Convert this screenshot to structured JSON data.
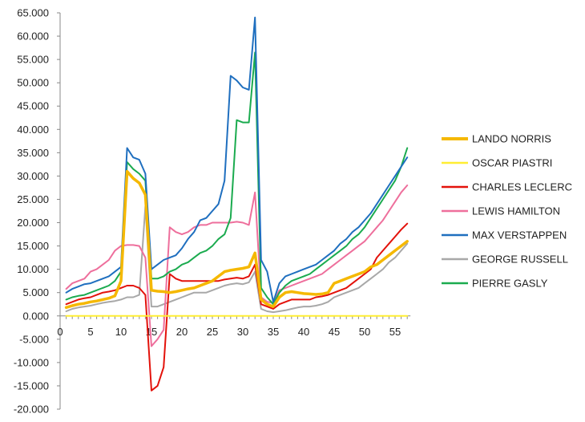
{
  "chart_data": {
    "type": "line",
    "x": [
      1,
      2,
      3,
      4,
      5,
      6,
      7,
      8,
      9,
      10,
      11,
      12,
      13,
      14,
      15,
      16,
      17,
      18,
      19,
      20,
      21,
      22,
      23,
      24,
      25,
      26,
      27,
      28,
      29,
      30,
      31,
      32,
      33,
      34,
      35,
      36,
      37,
      38,
      39,
      40,
      41,
      42,
      43,
      44,
      45,
      46,
      47,
      48,
      49,
      50,
      51,
      52,
      53,
      54,
      55,
      56,
      57
    ],
    "ylim": [
      -20,
      65
    ],
    "yticks": [
      "-20.000",
      "-15.000",
      "-10.000",
      "-5.000",
      "0.000",
      "5.000",
      "10.000",
      "15.000",
      "20.000",
      "25.000",
      "30.000",
      "35.000",
      "40.000",
      "45.000",
      "50.000",
      "55.000",
      "60.000",
      "65.000"
    ],
    "ytick_values": [
      -20,
      -15,
      -10,
      -5,
      0,
      5,
      10,
      15,
      20,
      25,
      30,
      35,
      40,
      45,
      50,
      55,
      60,
      65
    ],
    "xticks": [
      "0",
      "5",
      "10",
      "15",
      "20",
      "25",
      "30",
      "35",
      "40",
      "45",
      "50",
      "55"
    ],
    "xtick_values": [
      0,
      5,
      10,
      15,
      20,
      25,
      30,
      35,
      40,
      45,
      50,
      55
    ],
    "grid": false,
    "legend_position": "right",
    "series": [
      {
        "name": "LANDO NORRIS",
        "color": "#f5b800",
        "width": 3.5,
        "values": [
          1.8,
          2.2,
          2.5,
          2.7,
          3.0,
          3.2,
          3.5,
          3.8,
          4.3,
          7.5,
          31.0,
          29.5,
          28.5,
          26.0,
          5.5,
          5.3,
          5.2,
          5.0,
          5.2,
          5.5,
          5.8,
          6.0,
          6.5,
          7.0,
          7.5,
          8.5,
          9.5,
          9.8,
          10.0,
          10.2,
          10.5,
          13.5,
          3.5,
          2.5,
          2.0,
          4.0,
          5.0,
          5.2,
          5.0,
          4.8,
          4.7,
          4.6,
          4.7,
          5.0,
          7.0,
          7.5,
          8.0,
          8.5,
          9.0,
          9.5,
          10.5,
          11.0,
          12.0,
          13.0,
          14.0,
          15.0,
          16.0
        ]
      },
      {
        "name": "OSCAR PIASTRI",
        "color": "#ffee33",
        "width": 2,
        "values": [
          0,
          0,
          0,
          0,
          0,
          0,
          0,
          0,
          0,
          0,
          0,
          0,
          0,
          0,
          0,
          0,
          0,
          0,
          0,
          0,
          0,
          0,
          0,
          0,
          0,
          0,
          0,
          0,
          0,
          0,
          0,
          0,
          0,
          0,
          0,
          0,
          0,
          0,
          0,
          0,
          0,
          0,
          0,
          0,
          0,
          0,
          0,
          0,
          0,
          0,
          0,
          0,
          0,
          0,
          0,
          0,
          0
        ]
      },
      {
        "name": "CHARLES LECLERC",
        "color": "#e3120b",
        "width": 2,
        "values": [
          2.5,
          3.0,
          3.5,
          3.8,
          4.0,
          4.5,
          5.0,
          5.2,
          5.5,
          6.0,
          6.5,
          6.5,
          6.0,
          4.5,
          -16.0,
          -15.0,
          -11.0,
          9.0,
          8.0,
          7.5,
          7.5,
          7.5,
          7.5,
          7.5,
          7.5,
          7.5,
          7.8,
          8.0,
          8.2,
          8.0,
          8.5,
          11.0,
          2.5,
          2.0,
          1.5,
          2.5,
          3.0,
          3.5,
          3.5,
          3.5,
          3.5,
          4.0,
          4.2,
          4.5,
          5.0,
          5.5,
          6.0,
          7.0,
          8.0,
          9.0,
          10.0,
          12.5,
          14.0,
          15.5,
          17.0,
          18.5,
          19.8
        ]
      },
      {
        "name": "LEWIS HAMILTON",
        "color": "#ee6f9c",
        "width": 2,
        "values": [
          5.8,
          7.0,
          7.5,
          8.0,
          9.5,
          10.0,
          11.0,
          12.0,
          14.0,
          15.0,
          15.2,
          15.2,
          15.0,
          12.5,
          -6.5,
          -5.0,
          -3.0,
          19.0,
          18.0,
          17.5,
          18.0,
          19.0,
          19.5,
          19.5,
          20.0,
          20.0,
          20.0,
          20.0,
          20.2,
          20.0,
          19.5,
          26.5,
          4.0,
          3.0,
          2.8,
          5.5,
          6.0,
          6.5,
          7.0,
          7.5,
          8.0,
          8.5,
          9.0,
          10.0,
          11.0,
          12.0,
          13.0,
          14.0,
          15.0,
          16.0,
          17.5,
          19.0,
          20.5,
          22.5,
          24.5,
          26.5,
          28.0
        ]
      },
      {
        "name": "MAX VERSTAPPEN",
        "color": "#1f6fbf",
        "width": 2,
        "values": [
          5.0,
          5.8,
          6.3,
          6.8,
          7.0,
          7.5,
          8.0,
          8.5,
          9.5,
          10.5,
          36.0,
          34.0,
          33.5,
          30.5,
          10.0,
          11.0,
          12.0,
          12.5,
          13.0,
          14.5,
          16.5,
          18.0,
          20.5,
          21.0,
          22.5,
          24.0,
          29.0,
          51.5,
          50.5,
          49.0,
          48.5,
          64.0,
          12.0,
          9.5,
          3.0,
          7.0,
          8.5,
          9.0,
          9.5,
          10.0,
          10.5,
          11.0,
          12.0,
          13.0,
          14.0,
          15.5,
          16.5,
          18.0,
          19.0,
          20.5,
          22.0,
          24.0,
          26.0,
          28.0,
          30.0,
          32.0,
          34.0
        ]
      },
      {
        "name": "GEORGE RUSSELL",
        "color": "#a8a8a8",
        "width": 2,
        "values": [
          1.0,
          1.5,
          1.8,
          2.0,
          2.2,
          2.5,
          2.8,
          3.0,
          3.2,
          3.5,
          4.0,
          4.0,
          4.5,
          23.5,
          2.0,
          2.0,
          2.5,
          3.0,
          3.5,
          4.0,
          4.5,
          5.0,
          5.0,
          5.0,
          5.5,
          6.0,
          6.5,
          6.8,
          7.0,
          6.8,
          7.2,
          9.5,
          1.5,
          1.0,
          0.8,
          1.0,
          1.2,
          1.5,
          1.8,
          2.0,
          2.0,
          2.2,
          2.5,
          3.0,
          4.0,
          4.5,
          5.0,
          5.5,
          6.0,
          7.0,
          8.0,
          9.0,
          10.0,
          11.5,
          12.5,
          14.0,
          15.5
        ]
      },
      {
        "name": "PIERRE GASLY",
        "color": "#1bab4f",
        "width": 2,
        "values": [
          3.5,
          4.0,
          4.3,
          4.5,
          5.0,
          5.5,
          6.0,
          6.5,
          7.5,
          9.5,
          33.0,
          31.5,
          30.5,
          29.0,
          8.0,
          8.0,
          8.5,
          9.5,
          10.0,
          11.0,
          11.5,
          12.5,
          13.5,
          14.0,
          15.0,
          16.5,
          17.5,
          21.0,
          42.0,
          41.5,
          41.5,
          56.5,
          6.0,
          4.0,
          2.5,
          5.0,
          6.5,
          7.5,
          8.0,
          8.5,
          9.0,
          10.0,
          11.0,
          12.0,
          13.0,
          14.0,
          15.0,
          16.5,
          17.5,
          19.0,
          21.0,
          23.0,
          25.0,
          27.0,
          29.0,
          32.0,
          36.0
        ]
      }
    ]
  }
}
